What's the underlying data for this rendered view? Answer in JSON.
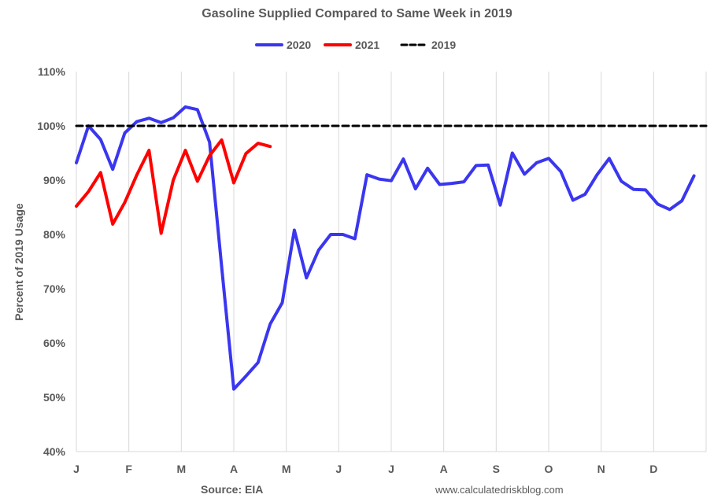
{
  "chart_data": {
    "type": "line",
    "title": "Gasoline Supplied Compared to Same Week in 2019",
    "ylabel": "Percent of 2019 Usage",
    "xlabel": "",
    "ylim": [
      40,
      110
    ],
    "yticks": [
      40,
      50,
      60,
      70,
      80,
      90,
      100,
      110
    ],
    "ytick_labels": [
      "40%",
      "50%",
      "60%",
      "70%",
      "80%",
      "90%",
      "100%",
      "110%"
    ],
    "xlim": [
      0,
      52
    ],
    "month_labels": [
      "J",
      "F",
      "M",
      "A",
      "M",
      "J",
      "J",
      "A",
      "S",
      "O",
      "N",
      "D"
    ],
    "legend": [
      "2020",
      "2021",
      "2019"
    ],
    "grid": "vertical monthly gridlines",
    "series": [
      {
        "name": "2020",
        "color": "#3a36f0",
        "style": "solid",
        "values": [
          93.2,
          100.0,
          97.5,
          92.0,
          98.7,
          100.8,
          101.4,
          100.6,
          101.5,
          103.5,
          103.0,
          97.0,
          74.0,
          51.5,
          53.9,
          56.4,
          63.5,
          67.4,
          80.8,
          72.0,
          77.1,
          80.0,
          80.0,
          79.2,
          91.0,
          90.2,
          89.9,
          93.9,
          88.4,
          92.2,
          89.2,
          89.4,
          89.7,
          92.7,
          92.8,
          85.4,
          95.0,
          91.1,
          93.2,
          94.0,
          91.6,
          86.3,
          87.4,
          91.0,
          94.0,
          89.8,
          88.3,
          88.2,
          85.6,
          84.6,
          86.2,
          90.8
        ]
      },
      {
        "name": "2021",
        "color": "#ff0000",
        "style": "solid",
        "values": [
          85.2,
          87.9,
          91.4,
          81.9,
          85.9,
          91.0,
          95.5,
          80.2,
          90.0,
          95.5,
          89.8,
          94.5,
          97.4,
          89.5,
          94.9,
          96.8,
          96.2
        ]
      },
      {
        "name": "2019",
        "color": "#000000",
        "style": "dashed",
        "values": [
          100,
          100
        ]
      }
    ],
    "source": "Source: EIA",
    "website": "www.calculatedriskblog.com"
  }
}
